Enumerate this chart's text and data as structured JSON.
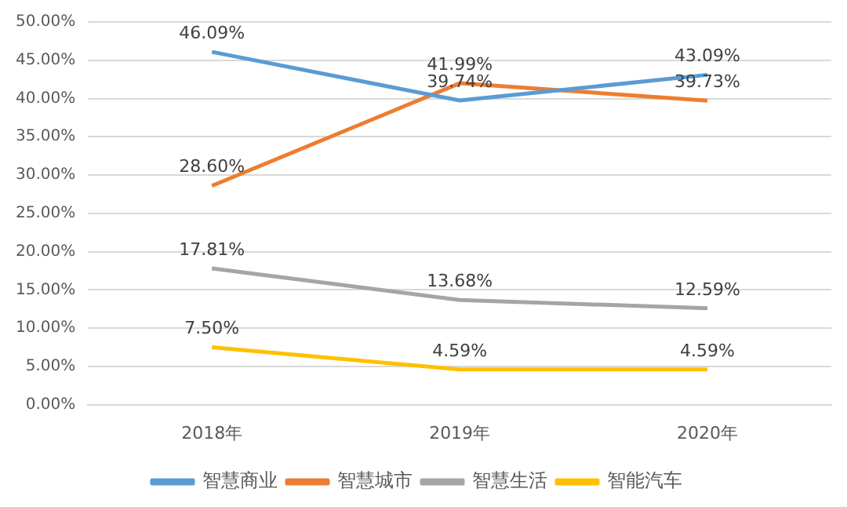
{
  "chart_data": {
    "type": "line",
    "categories": [
      "2018年",
      "2019年",
      "2020年"
    ],
    "series": [
      {
        "name": "智慧商业",
        "color": "#5b9bd5",
        "values": [
          46.09,
          39.74,
          43.09
        ],
        "value_labels": [
          "46.09%",
          "39.74%",
          "43.09%"
        ]
      },
      {
        "name": "智慧城市",
        "color": "#ed7d31",
        "values": [
          28.6,
          41.99,
          39.73
        ],
        "value_labels": [
          "28.60%",
          "41.99%",
          "39.73%"
        ]
      },
      {
        "name": "智慧生活",
        "color": "#a5a5a5",
        "values": [
          17.81,
          13.68,
          12.59
        ],
        "value_labels": [
          "17.81%",
          "13.68%",
          "12.59%"
        ]
      },
      {
        "name": "智能汽车",
        "color": "#ffc000",
        "values": [
          7.5,
          4.59,
          4.59
        ],
        "value_labels": [
          "7.50%",
          "4.59%",
          "4.59%"
        ]
      }
    ],
    "ylim": [
      0,
      50
    ],
    "yticks": [
      {
        "value": 0,
        "label": "0.00%"
      },
      {
        "value": 5,
        "label": "5.00%"
      },
      {
        "value": 10,
        "label": "10.00%"
      },
      {
        "value": 15,
        "label": "15.00%"
      },
      {
        "value": 20,
        "label": "20.00%"
      },
      {
        "value": 25,
        "label": "25.00%"
      },
      {
        "value": 30,
        "label": "30.00%"
      },
      {
        "value": 35,
        "label": "35.00%"
      },
      {
        "value": 40,
        "label": "40.00%"
      },
      {
        "value": 45,
        "label": "45.00%"
      },
      {
        "value": 50,
        "label": "50.00%"
      }
    ],
    "grid": "y",
    "legend": "bottom",
    "marker": "none",
    "line_style": "solid"
  }
}
